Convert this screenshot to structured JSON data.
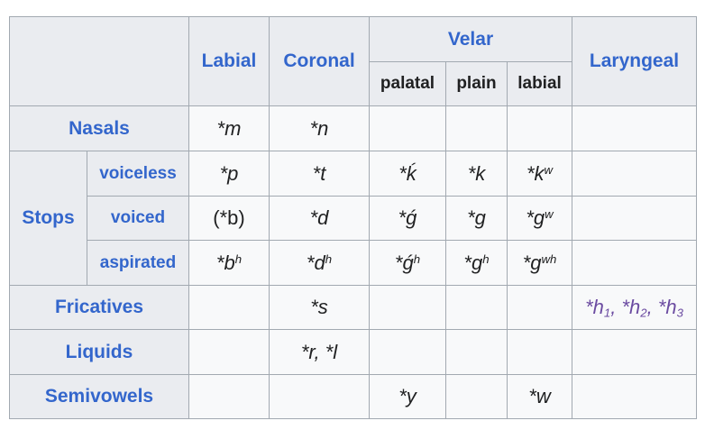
{
  "header": {
    "labial": "Labial",
    "coronal": "Coronal",
    "velar": "Velar",
    "palatal": "palatal",
    "plain": "plain",
    "labial_sub": "labial",
    "laryngeal": "Laryngeal"
  },
  "rows": {
    "nasals": {
      "label": "Nasals",
      "labial": "*m",
      "coronal": "*n"
    },
    "stops": {
      "label": "Stops",
      "voiceless": {
        "label": "voiceless",
        "labial": "*p",
        "coronal": "*t",
        "palatal": "*ḱ",
        "plain": "*k",
        "labial_velar_base": "*k",
        "labial_velar_sup": "w"
      },
      "voiced": {
        "label": "voiced",
        "labial": "(*b)",
        "coronal": "*d",
        "palatal": "*ǵ",
        "plain": "*g",
        "labial_velar_base": "*g",
        "labial_velar_sup": "w"
      },
      "aspirated": {
        "label": "aspirated",
        "labial_base": "*b",
        "labial_sup": "h",
        "coronal_base": "*d",
        "coronal_sup": "h",
        "palatal_base": "*ǵ",
        "palatal_sup": "h",
        "plain_base": "*g",
        "plain_sup": "h",
        "labial_velar_base": "*g",
        "labial_velar_sup": "wh"
      }
    },
    "fricatives": {
      "label": "Fricatives",
      "coronal": "*s",
      "laryngeal": {
        "h1": "*h",
        "s1": "1",
        "sep1": ", ",
        "h2": "*h",
        "s2": "2",
        "sep2": ", ",
        "h3": "*h",
        "s3": "3"
      }
    },
    "liquids": {
      "label": "Liquids",
      "coronal": "*r, *l"
    },
    "semivowels": {
      "label": "Semivowels",
      "palatal": "*y",
      "labial_velar": "*w"
    }
  }
}
